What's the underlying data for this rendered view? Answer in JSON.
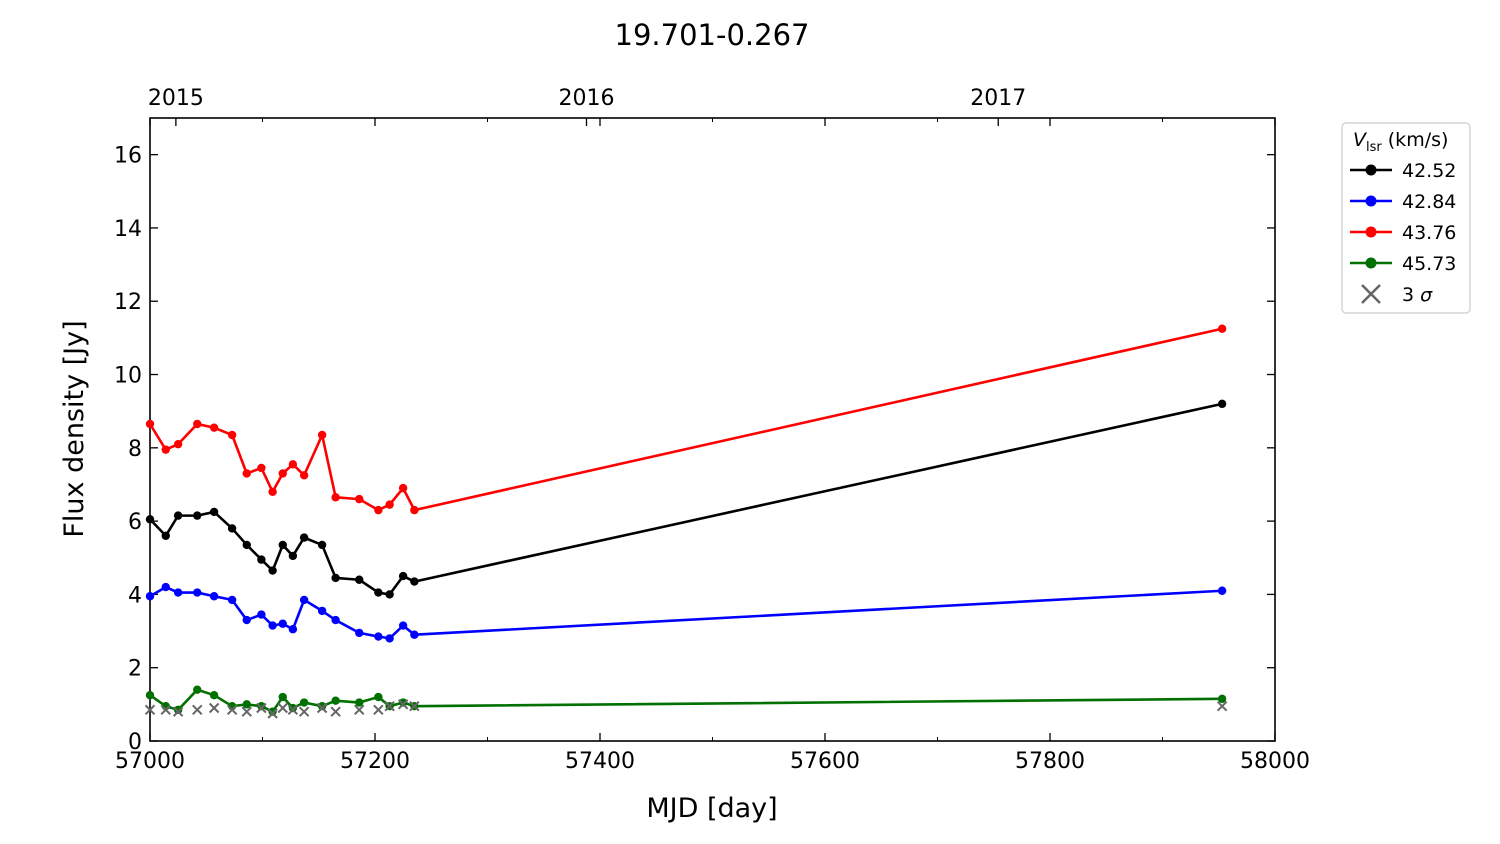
{
  "chart_data": {
    "type": "line",
    "title": "19.701-0.267",
    "xlabel": "MJD [day]",
    "ylabel": "Flux density [Jy]",
    "xlim": [
      57000,
      58000
    ],
    "ylim": [
      0,
      17
    ],
    "x_ticks": [
      57000,
      57200,
      57400,
      57600,
      57800,
      58000
    ],
    "x_ticks_minor": [
      57100,
      57300,
      57500,
      57700,
      57900
    ],
    "y_ticks": [
      0,
      2,
      4,
      6,
      8,
      10,
      12,
      14,
      16
    ],
    "top_axis": {
      "labels": [
        "2015",
        "2016",
        "2017"
      ],
      "mjd": [
        57023,
        57388,
        57754
      ]
    },
    "legend": {
      "title_main": "V",
      "title_sub": "lsr",
      "title_unit": " (km/s)",
      "position": "outside-right-top",
      "sigma_label_prefix": "3 ",
      "sigma_label_symbol": "σ"
    },
    "series": [
      {
        "name": "42.52",
        "color": "#000000",
        "x": [
          57000,
          57014,
          57025,
          57042,
          57057,
          57073,
          57086,
          57099,
          57109,
          57118,
          57127,
          57137,
          57153,
          57165,
          57186,
          57203,
          57213,
          57225,
          57235,
          57953
        ],
        "y": [
          6.05,
          5.6,
          6.15,
          6.15,
          6.25,
          5.8,
          5.35,
          4.95,
          4.65,
          5.35,
          5.05,
          5.55,
          5.35,
          4.45,
          4.4,
          4.05,
          4.0,
          4.5,
          4.35,
          9.2
        ]
      },
      {
        "name": "42.84",
        "color": "#0000ff",
        "x": [
          57000,
          57014,
          57025,
          57042,
          57057,
          57073,
          57086,
          57099,
          57109,
          57118,
          57127,
          57137,
          57153,
          57165,
          57186,
          57203,
          57213,
          57225,
          57235,
          57953
        ],
        "y": [
          3.95,
          4.2,
          4.05,
          4.05,
          3.95,
          3.85,
          3.3,
          3.45,
          3.15,
          3.2,
          3.05,
          3.85,
          3.55,
          3.3,
          2.95,
          2.85,
          2.8,
          3.15,
          2.9,
          4.1
        ]
      },
      {
        "name": "43.76",
        "color": "#ff0000",
        "x": [
          57000,
          57014,
          57025,
          57042,
          57057,
          57073,
          57086,
          57099,
          57109,
          57118,
          57127,
          57137,
          57153,
          57165,
          57186,
          57203,
          57213,
          57225,
          57235,
          57953
        ],
        "y": [
          8.65,
          7.95,
          8.1,
          8.65,
          8.55,
          8.35,
          7.3,
          7.45,
          6.8,
          7.3,
          7.55,
          7.25,
          8.35,
          6.65,
          6.6,
          6.3,
          6.45,
          6.9,
          6.3,
          11.25
        ]
      },
      {
        "name": "45.73",
        "color": "#007000",
        "x": [
          57000,
          57014,
          57025,
          57042,
          57057,
          57073,
          57086,
          57099,
          57109,
          57118,
          57127,
          57137,
          57153,
          57165,
          57186,
          57203,
          57213,
          57225,
          57235,
          57953
        ],
        "y": [
          1.25,
          0.95,
          0.85,
          1.4,
          1.25,
          0.95,
          1.0,
          0.95,
          0.8,
          1.2,
          0.9,
          1.05,
          0.95,
          1.1,
          1.05,
          1.2,
          0.95,
          1.05,
          0.95,
          1.15
        ]
      }
    ],
    "sigma": {
      "name": "3 σ",
      "color": "#666666",
      "x": [
        57000,
        57014,
        57025,
        57042,
        57057,
        57073,
        57086,
        57099,
        57109,
        57118,
        57127,
        57137,
        57153,
        57165,
        57186,
        57203,
        57213,
        57225,
        57235,
        57953
      ],
      "y": [
        0.85,
        0.85,
        0.8,
        0.85,
        0.9,
        0.85,
        0.8,
        0.9,
        0.75,
        0.9,
        0.85,
        0.8,
        0.9,
        0.8,
        0.85,
        0.85,
        0.95,
        1.0,
        0.95,
        0.95
      ]
    }
  }
}
